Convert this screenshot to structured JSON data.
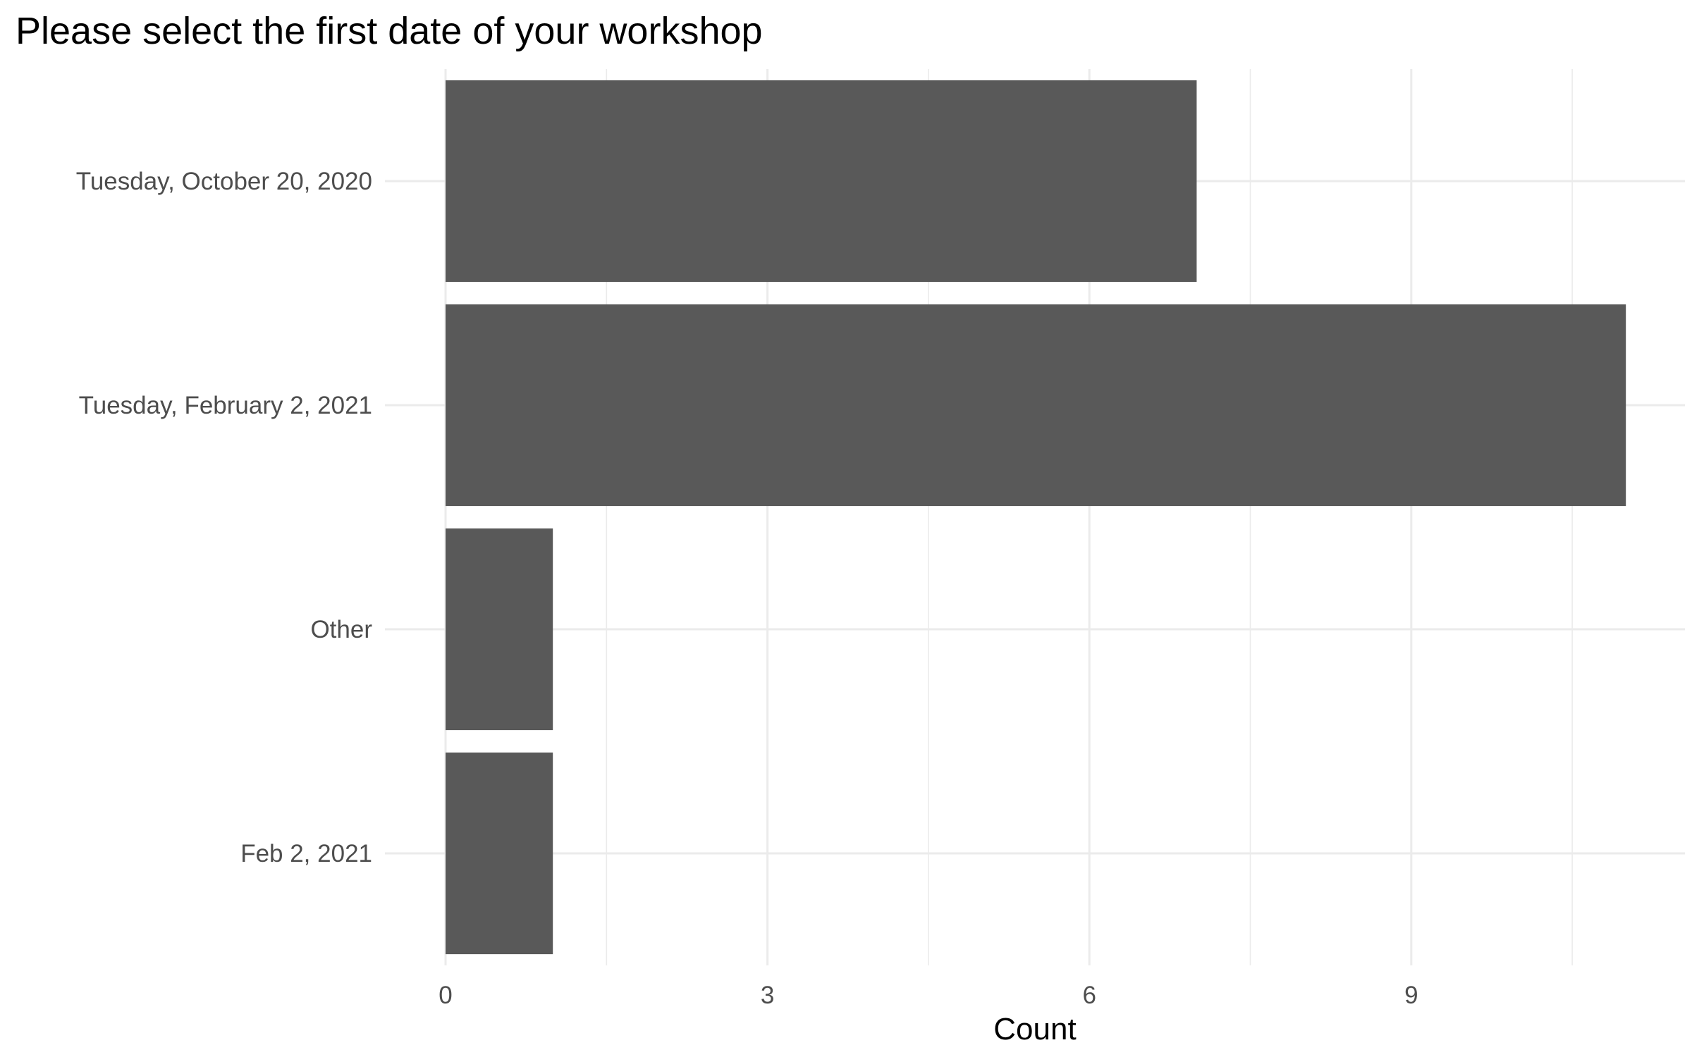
{
  "chart_data": {
    "type": "bar",
    "orientation": "horizontal",
    "title": "Please select the first date of your workshop",
    "xlabel": "Count",
    "ylabel": "",
    "categories": [
      "Tuesday, October 20, 2020",
      "Tuesday, February 2, 2021",
      "Other",
      "Feb 2, 2021"
    ],
    "values": [
      7,
      11,
      1,
      1
    ],
    "xlim": [
      0,
      11.5
    ],
    "x_ticks": [
      0,
      3,
      6,
      9
    ],
    "grid": true,
    "legend": "none",
    "colors": {
      "bar": "#595959",
      "grid": "#ebebeb",
      "tick_text": "#4d4d4d",
      "text": "#000000",
      "background": "#ffffff"
    }
  }
}
